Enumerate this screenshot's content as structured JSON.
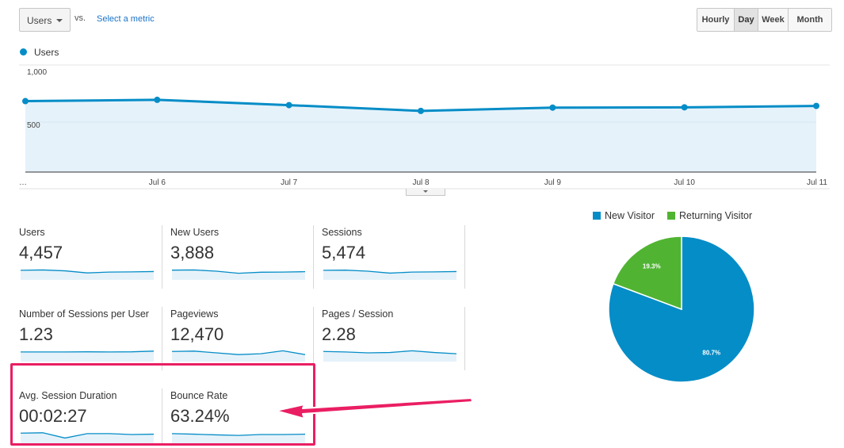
{
  "toolbar": {
    "metric_select": "Users",
    "vs": "vs.",
    "select_metric": "Select a metric",
    "granularity": [
      {
        "label": "Hourly",
        "active": false
      },
      {
        "label": "Day",
        "active": true
      },
      {
        "label": "Week",
        "active": false
      },
      {
        "label": "Month",
        "active": false
      }
    ]
  },
  "chart_data": [
    {
      "type": "area",
      "series": [
        {
          "name": "Users",
          "values": [
            710,
            723,
            670,
            612,
            645,
            648,
            662
          ]
        }
      ],
      "x": [
        "…",
        "Jul 6",
        "Jul 7",
        "Jul 8",
        "Jul 9",
        "Jul 10",
        "Jul 11"
      ],
      "yticks": [
        "1,000",
        "500"
      ],
      "ylim": [
        0,
        1000
      ],
      "color": "#058dc7",
      "fill": "#e6f2fa"
    },
    {
      "type": "pie",
      "labels": [
        "New Visitor",
        "Returning Visitor"
      ],
      "values": [
        80.7,
        19.3
      ],
      "value_labels": [
        "80.7%",
        "19.3%"
      ],
      "colors": [
        "#058dc7",
        "#50b432"
      ],
      "legend": "top"
    }
  ],
  "metrics": [
    {
      "label": "Users",
      "value": "4,457",
      "spark": [
        0.55,
        0.57,
        0.52,
        0.4,
        0.45,
        0.46,
        0.48
      ]
    },
    {
      "label": "New Users",
      "value": "3,888",
      "spark": [
        0.56,
        0.57,
        0.5,
        0.38,
        0.44,
        0.45,
        0.47
      ]
    },
    {
      "label": "Sessions",
      "value": "5,474",
      "spark": [
        0.55,
        0.56,
        0.5,
        0.39,
        0.45,
        0.46,
        0.48
      ]
    },
    {
      "label": "Number of Sessions per User",
      "value": "1.23",
      "spark": [
        0.55,
        0.55,
        0.55,
        0.56,
        0.55,
        0.56,
        0.6
      ]
    },
    {
      "label": "Pageviews",
      "value": "12,470",
      "spark": [
        0.58,
        0.6,
        0.5,
        0.4,
        0.45,
        0.62,
        0.4
      ]
    },
    {
      "label": "Pages / Session",
      "value": "2.28",
      "spark": [
        0.58,
        0.55,
        0.5,
        0.52,
        0.62,
        0.52,
        0.45
      ]
    },
    {
      "label": "Avg. Session Duration",
      "value": "00:02:27",
      "spark": [
        0.58,
        0.6,
        0.3,
        0.55,
        0.55,
        0.5,
        0.52
      ]
    },
    {
      "label": "Bounce Rate",
      "value": "63.24%",
      "spark": [
        0.55,
        0.52,
        0.48,
        0.45,
        0.5,
        0.5,
        0.52
      ]
    }
  ]
}
